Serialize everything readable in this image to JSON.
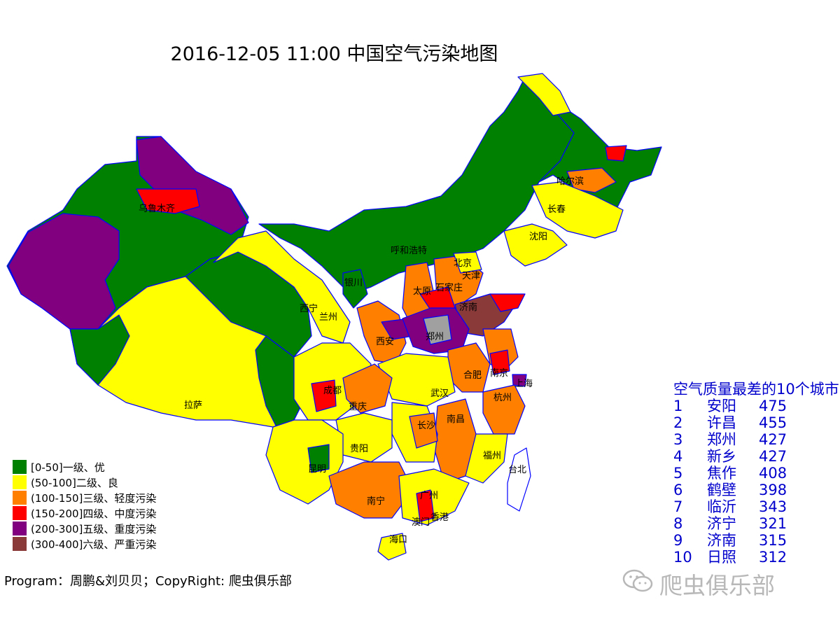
{
  "title": "2016-12-05 11:00 中国空气污染地图",
  "colors": {
    "level1": "#008000",
    "level2": "#ffff00",
    "level3": "#ff8000",
    "level4": "#ff0000",
    "level5": "#800080",
    "level6": "#8b3a3a",
    "nodata": "#a0a0a0",
    "boundary": "#0000ff",
    "ranking_text": "#0000cc",
    "watermark": "#b8b8b8"
  },
  "legend": [
    {
      "label": "[0-50]一级、优",
      "color": "#008000"
    },
    {
      "label": "(50-100]二级、良",
      "color": "#ffff00"
    },
    {
      "label": "(100-150]三级、轻度污染",
      "color": "#ff8000"
    },
    {
      "label": "(150-200]四级、中度污染",
      "color": "#ff0000"
    },
    {
      "label": "(200-300]五级、重度污染",
      "color": "#800080"
    },
    {
      "label": "(300-400]六级、严重污染",
      "color": "#8b3a3a"
    }
  ],
  "cities": [
    "乌鲁木齐",
    "哈尔滨",
    "长春",
    "沈阳",
    "呼和浩特",
    "北京",
    "天津",
    "银川",
    "太原",
    "石家庄",
    "西宁",
    "兰州",
    "济南",
    "郑州",
    "西安",
    "合肥",
    "南京",
    "上海",
    "成都",
    "重庆",
    "武汉",
    "杭州",
    "拉萨",
    "长沙",
    "南昌",
    "贵阳",
    "福州",
    "昆明",
    "台北",
    "南宁",
    "广州",
    "香港",
    "澳门",
    "海口"
  ],
  "ranking": {
    "title": "空气质量最差的10个城市",
    "rows": [
      {
        "rank": "1",
        "city": "安阳",
        "value": "475"
      },
      {
        "rank": "2",
        "city": "许昌",
        "value": "455"
      },
      {
        "rank": "3",
        "city": "郑州",
        "value": "427"
      },
      {
        "rank": "4",
        "city": "新乡",
        "value": "427"
      },
      {
        "rank": "5",
        "city": "焦作",
        "value": "408"
      },
      {
        "rank": "6",
        "city": "鹤壁",
        "value": "398"
      },
      {
        "rank": "7",
        "city": "临沂",
        "value": "343"
      },
      {
        "rank": "8",
        "city": "济宁",
        "value": "321"
      },
      {
        "rank": "9",
        "city": "济南",
        "value": "315"
      },
      {
        "rank": "10",
        "city": "日照",
        "value": "312"
      }
    ]
  },
  "credit": "Program：周鹏&刘贝贝；CopyRight: 爬虫俱乐部",
  "watermark": "爬虫俱乐部"
}
